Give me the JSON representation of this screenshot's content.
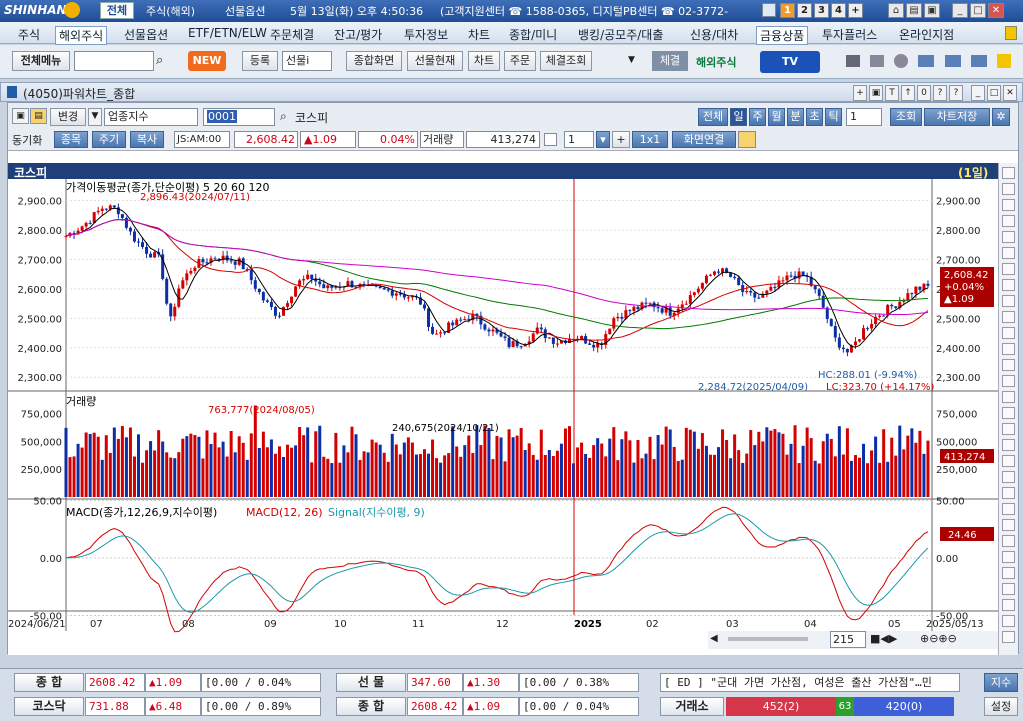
{
  "titlebar": {
    "logo": "SHINHAN",
    "tabs": [
      "전체",
      "주식(해외)",
      "선물옵션"
    ],
    "datetime": "5월 13일(화) 오후 4:50:36",
    "center": "(고객지원센터 ☎ 1588-0365, 디지털PB센터 ☎ 02-3772-",
    "nums": [
      "1",
      "2",
      "3",
      "4",
      "+"
    ]
  },
  "menu": {
    "items": [
      "주식",
      "해외주식",
      "선물옵션",
      "ETF/ETN/ELW",
      "주문체결",
      "잔고/평가",
      "투자정보",
      "차트",
      "종합/미니",
      "뱅킹/공모주/대출",
      "신용/대차",
      "금융상품",
      "투자플러스",
      "온라인지점"
    ]
  },
  "toolbar": {
    "all_menu": "전체메뉴",
    "new_label": "NEW",
    "register": "등록",
    "futures_sel": "선물i",
    "items": [
      "종합화면",
      "선물현재",
      "차트",
      "주문",
      "체결조회"
    ],
    "chegyeol": "체결",
    "overseas": "해외주식",
    "tv": "TV"
  },
  "window": {
    "title": "(4050)파워차트_종합"
  },
  "controls": {
    "change": "변경",
    "sector_select": "업종지수",
    "code": "0001",
    "name": "코스피",
    "periods": [
      "전체",
      "일",
      "주",
      "월",
      "분",
      "초",
      "틱"
    ],
    "period_count": "1",
    "lookup": "조회",
    "save_chart": "차트저장",
    "sync": "동기화",
    "jongmok": "종목",
    "jugi": "주기",
    "boksa": "복사",
    "ts_label": "JS:AM:00",
    "price": "2,608.42",
    "change_val": "▲1.09",
    "change_pct": "0.04%",
    "volume_label": "거래량",
    "volume": "413,274",
    "count2": "1",
    "onebyone": "1x1",
    "screen_link": "화면연결"
  },
  "chart": {
    "name": "코스피",
    "period_label": "(1일)",
    "price_panel_title": "가격이동평균(종가,단순이평) 5 20 60 120",
    "ma_labels": [
      "5",
      "20",
      "60",
      "120"
    ],
    "high_note": "2,896.43(2024/07/11)",
    "low_note": "2,284.72(2025/04/09)",
    "hc_note": "HC:288.01 (-9.94%)",
    "lc_note": "LC:323.70 (+14.17%)",
    "price_box": [
      "2,608.42",
      "+0.04%",
      "▲1.09"
    ],
    "vol_title": "거래량",
    "vol_peak_note": "763,777(2024/08/05)",
    "vol_cursor_note": "240,675(2024/10/21)",
    "vol_box": "413,274",
    "macd_title": "MACD(종가,12,26,9,지수이평)",
    "macd_sub": "MACD(12, 26)",
    "macd_signal": "Signal(지수이평, 9)",
    "macd_box": "24.46",
    "dates": [
      "2024/06/21",
      "07",
      "08",
      "09",
      "10",
      "11",
      "12",
      "2025",
      "02",
      "03",
      "04",
      "05",
      "2025/05/13"
    ],
    "scroll_count": "215",
    "price_ticks": [
      "2,900.00",
      "2,800.00",
      "2,700.00",
      "2,600.00",
      "2,500.00",
      "2,400.00",
      "2,300.00"
    ],
    "vol_ticks": [
      "750,000",
      "500,000",
      "250,000"
    ],
    "macd_ticks": [
      "50.00",
      "0.00",
      "-50.00"
    ],
    "colors": {
      "up": "#d40000",
      "down": "#0a2fa8",
      "ma5": "#000000",
      "ma20": "#d40000",
      "ma60": "#007a00",
      "ma120": "#cc00cc",
      "signal": "#1a9aa6"
    }
  },
  "status": {
    "rows": [
      {
        "label": "종  합",
        "val": "2608.42",
        "chg": "▲1.09",
        "pct": "[0.00 / 0.04%",
        "label2": "선  물",
        "val2": "347.60",
        "chg2": "▲1.30",
        "pct2": "[0.00 / 0.38%"
      },
      {
        "label": "코스닥",
        "val": "731.88",
        "chg": "▲6.48",
        "pct": "[0.00 / 0.89%",
        "label2": "종  합",
        "val2": "2608.42",
        "chg2": "▲1.09",
        "pct2": "[0.00 / 0.04%"
      }
    ],
    "news": "[ ED ] \"군대 가면 가산점, 여성은 출산 가산점\"…민",
    "jisu": "지수",
    "exchange": "거래소",
    "up_count": "452(2)",
    "flat": "63",
    "down_count": "420(0)",
    "setting": "설정"
  }
}
